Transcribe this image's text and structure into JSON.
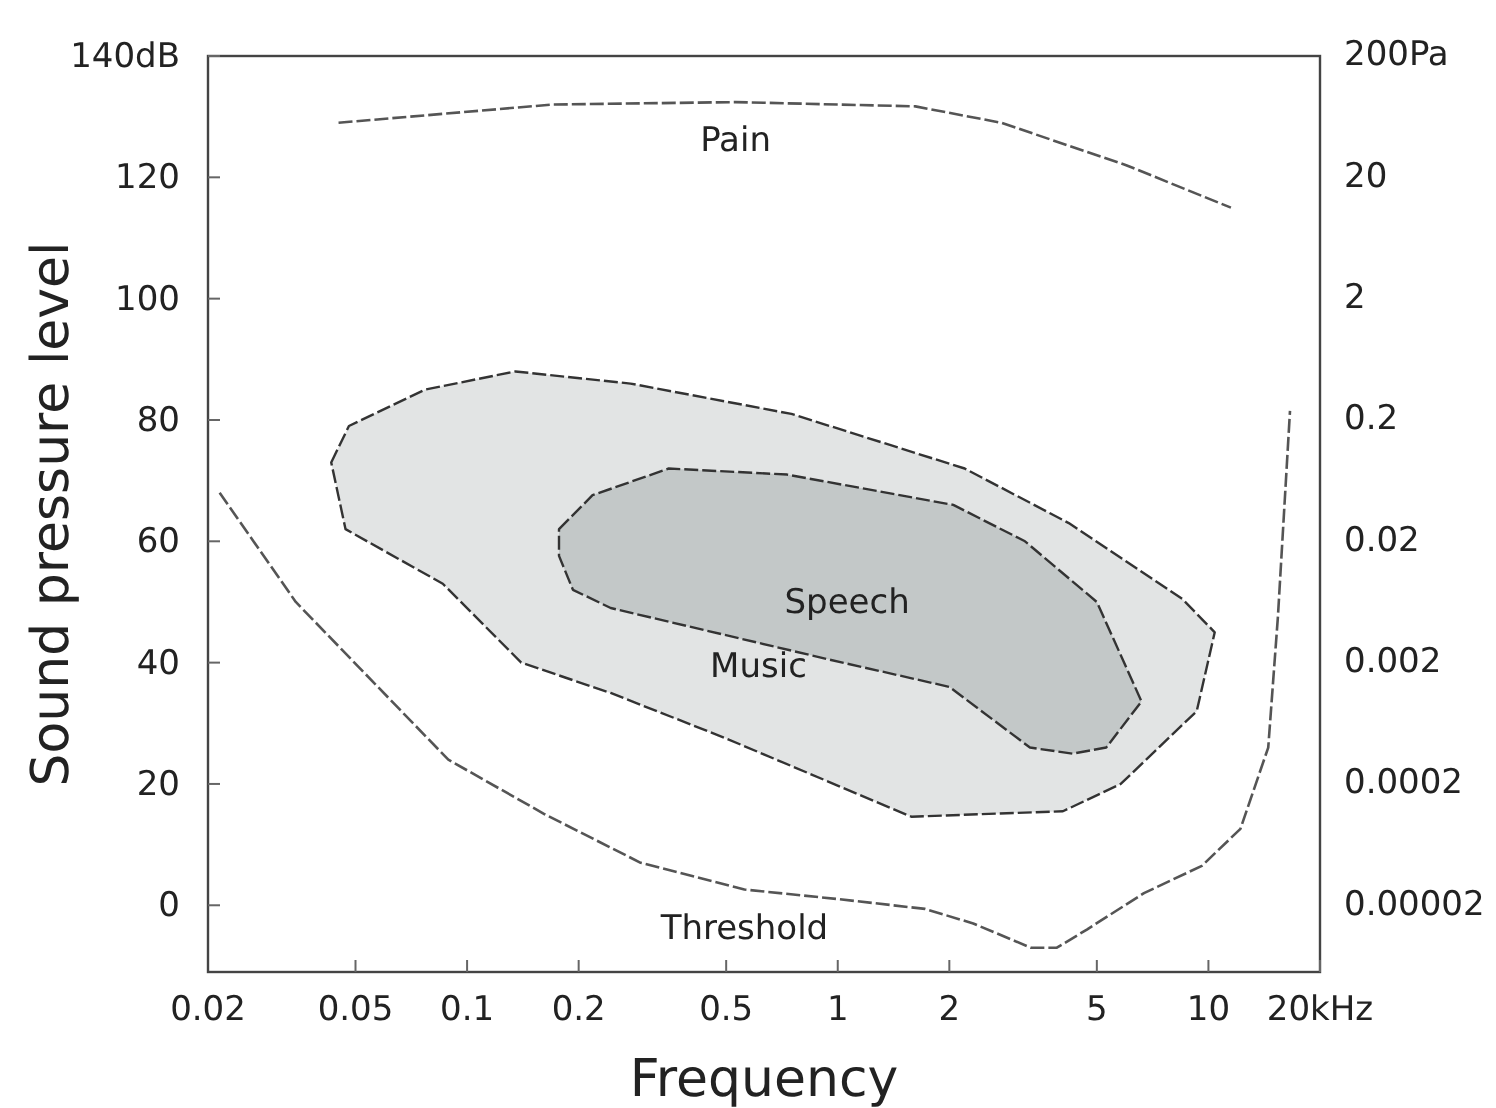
{
  "chart_data": {
    "type": "line",
    "xlabel": "Frequency",
    "ylabel": "Sound pressure level",
    "log": "x",
    "xlim": [
      0.02,
      20
    ],
    "ylim": [
      -11,
      140
    ],
    "xticks": [
      0.02,
      0.05,
      0.1,
      0.2,
      0.5,
      1,
      2,
      5,
      10,
      {
        "value": 20,
        "label": "20kHz"
      }
    ],
    "yticks": [
      0,
      20,
      40,
      60,
      80,
      100,
      120,
      {
        "value": 140,
        "label": "140dB"
      }
    ],
    "annotations": [
      "0.00002",
      "0.0002",
      "0.002",
      "0.02",
      "0.2",
      "2",
      "20",
      "200Pa"
    ],
    "line_style": "dashed",
    "grid": false,
    "legend": false,
    "series": [
      {
        "name": "Music",
        "type": "area",
        "color": "#e2e4e4",
        "x": [
          0.043,
          0.048,
          0.077,
          0.135,
          0.276,
          0.75,
          2.2,
          4.2,
          8.5,
          10.4,
          9.3,
          5.8,
          4.05,
          1.58,
          0.5,
          0.244,
          0.14,
          0.086,
          0.047
        ],
        "values": [
          73,
          79,
          85,
          88,
          86,
          81,
          72,
          63,
          50.5,
          45,
          32,
          20,
          15.5,
          14.6,
          27.5,
          35,
          40,
          53,
          62
        ]
      },
      {
        "name": "Speech",
        "type": "area",
        "color": "#c3c8c8",
        "x": [
          0.177,
          0.218,
          0.35,
          0.73,
          2.05,
          3.2,
          5.0,
          6.6,
          5.3,
          4.3,
          3.3,
          2.0,
          0.95,
          0.244,
          0.193,
          0.177
        ],
        "values": [
          62,
          67.6,
          72,
          71,
          66,
          60,
          50,
          33.6,
          26,
          25,
          26,
          36,
          40.5,
          49,
          52,
          57.6
        ]
      },
      {
        "name": "Pain",
        "color": "#555555",
        "x": [
          0.045,
          0.17,
          0.53,
          1.62,
          2.76,
          6.0,
          11.5
        ],
        "values": [
          129,
          132,
          132.4,
          131.7,
          129,
          122,
          115
        ]
      },
      {
        "name": "Threshold",
        "color": "#555555",
        "x": [
          0.0215,
          0.0345,
          0.089,
          0.162,
          0.294,
          0.56,
          1.01,
          1.72,
          2.32,
          3.32,
          3.9,
          4.7,
          6.7,
          9.6,
          12.2,
          14.5,
          15.4,
          16.6
        ],
        "values": [
          68,
          50,
          24,
          15,
          7,
          2.6,
          1,
          -0.6,
          -3,
          -7,
          -7,
          -4,
          2,
          6.5,
          12.6,
          26,
          47.6,
          81.5
        ]
      }
    ]
  }
}
